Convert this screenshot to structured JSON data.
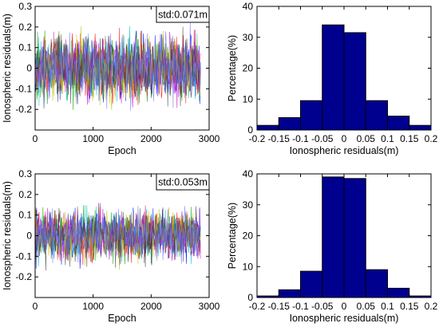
{
  "chart_data": [
    {
      "type": "line",
      "xlabel": "Epoch",
      "ylabel": "Ionospheric residuals(m)",
      "xlim": [
        0,
        3000
      ],
      "ylim": [
        -0.3,
        0.3
      ],
      "xticks": [
        0,
        1000,
        2000,
        3000
      ],
      "xtick_labels": [
        "0",
        "1000",
        "2000",
        "3000"
      ],
      "yticks": [
        -0.2,
        -0.1,
        0,
        0.1,
        0.2,
        0.3
      ],
      "ytick_labels": [
        "-0.2",
        "-0.1",
        "0",
        "0.1",
        "0.2",
        "0.3"
      ],
      "annotation": "std:0.071m",
      "series_colors": [
        "#0000ff",
        "#00a000",
        "#ff0000",
        "#00bfbf",
        "#bf00bf",
        "#bfbf00",
        "#404040",
        "#7070ff"
      ],
      "x_range": [
        0,
        2850
      ],
      "std": 0.071
    },
    {
      "type": "bar",
      "xlabel": "Ionospheric residuals(m)",
      "ylabel": "Percentage(%)",
      "bin_edges": [
        -0.2,
        -0.15,
        -0.1,
        -0.05,
        0,
        0.05,
        0.1,
        0.15,
        0.2
      ],
      "values": [
        1.5,
        4,
        9.5,
        34,
        31.5,
        9.5,
        4.5,
        1.5
      ],
      "ylim": [
        0,
        40
      ],
      "yticks": [
        0,
        10,
        20,
        30,
        40
      ],
      "ytick_labels": [
        "0",
        "10",
        "20",
        "30",
        "40"
      ],
      "xticks": [
        -0.2,
        -0.15,
        -0.1,
        -0.05,
        0,
        0.05,
        0.1,
        0.15,
        0.2
      ],
      "xtick_labels": [
        "-0.2",
        "-0.15",
        "-0.1",
        "-0.05",
        "0",
        "0.05",
        "0.1",
        "0.15",
        "0.2"
      ],
      "bar_color": "#00008f"
    },
    {
      "type": "line",
      "xlabel": "Epoch",
      "ylabel": "Ionospheric residuals(m)",
      "xlim": [
        0,
        3000
      ],
      "ylim": [
        -0.3,
        0.3
      ],
      "xticks": [
        0,
        1000,
        2000,
        3000
      ],
      "xtick_labels": [
        "0",
        "1000",
        "2000",
        "3000"
      ],
      "yticks": [
        -0.2,
        -0.1,
        0,
        0.1,
        0.2,
        0.3
      ],
      "ytick_labels": [
        "-0.2",
        "-0.1",
        "0",
        "0.1",
        "0.2",
        "0.3"
      ],
      "annotation": "std:0.053m",
      "series_colors": [
        "#0000ff",
        "#00a000",
        "#ff0000",
        "#00bfbf",
        "#bf00bf",
        "#bfbf00",
        "#404040",
        "#7070ff"
      ],
      "x_range": [
        0,
        2850
      ],
      "std": 0.053
    },
    {
      "type": "bar",
      "xlabel": "Ionospheric residuals(m)",
      "ylabel": "Percentage(%)",
      "bin_edges": [
        -0.2,
        -0.15,
        -0.1,
        -0.05,
        0,
        0.05,
        0.1,
        0.15,
        0.2
      ],
      "values": [
        0.5,
        2.5,
        8.5,
        39,
        38.5,
        9,
        3,
        0.5
      ],
      "ylim": [
        0,
        40
      ],
      "yticks": [
        0,
        10,
        20,
        30,
        40
      ],
      "ytick_labels": [
        "0",
        "10",
        "20",
        "30",
        "40"
      ],
      "xticks": [
        -0.2,
        -0.15,
        -0.1,
        -0.05,
        0,
        0.05,
        0.1,
        0.15,
        0.2
      ],
      "xtick_labels": [
        "-0.2",
        "-0.15",
        "-0.1",
        "-0.05",
        "0",
        "0.05",
        "0.1",
        "0.15",
        "0.2"
      ],
      "bar_color": "#00008f"
    }
  ]
}
